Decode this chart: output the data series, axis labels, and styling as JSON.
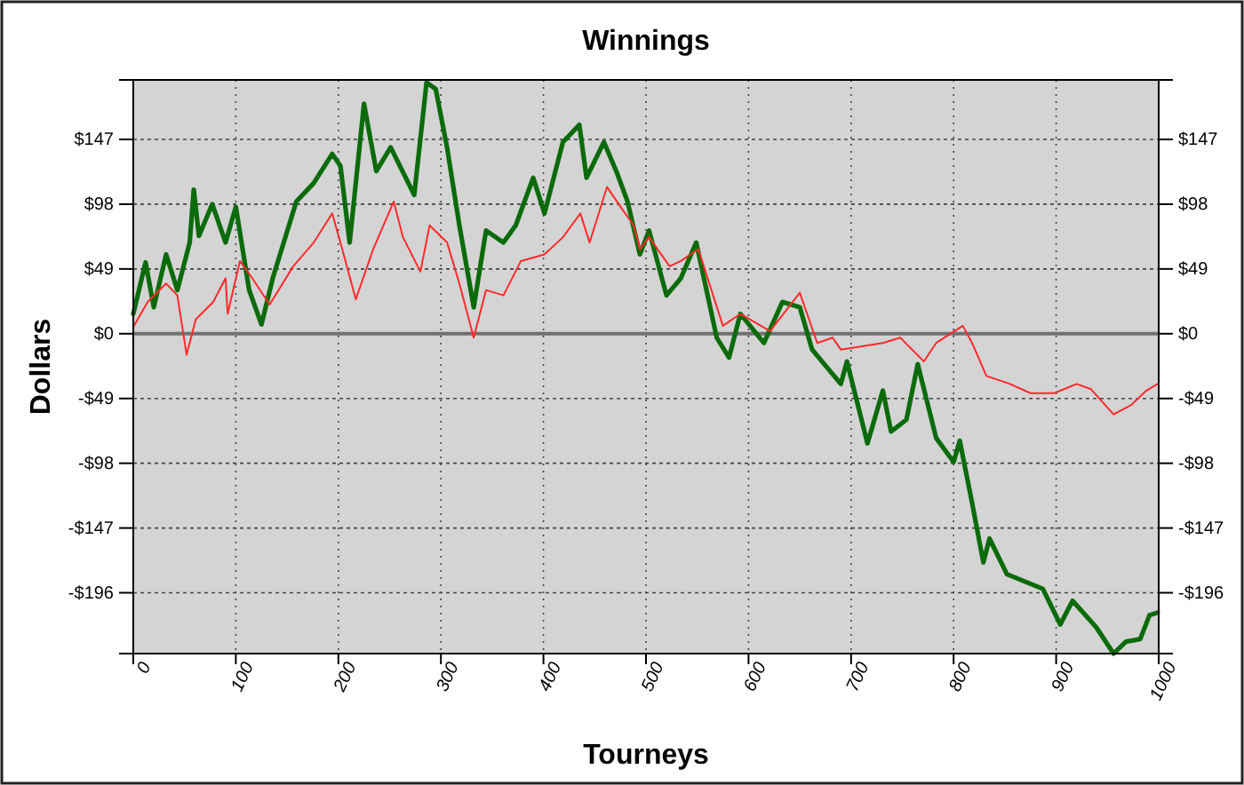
{
  "chart_data": {
    "type": "line",
    "title": "Winnings",
    "xlabel": "Tourneys",
    "ylabel": "Dollars",
    "xlim": [
      0,
      1000
    ],
    "xticks": [
      0,
      100,
      200,
      300,
      400,
      500,
      600,
      700,
      800,
      900,
      1000
    ],
    "ylim": [
      -242,
      192
    ],
    "yticks": [
      {
        "value": -196,
        "label": "-$196"
      },
      {
        "value": -147,
        "label": "-$147"
      },
      {
        "value": -98,
        "label": "-$98"
      },
      {
        "value": -49,
        "label": "-$49"
      },
      {
        "value": 0,
        "label": "$0"
      },
      {
        "value": 49,
        "label": "$49"
      },
      {
        "value": 98,
        "label": "$98"
      },
      {
        "value": 147,
        "label": "$147"
      }
    ],
    "y2lim": [
      -242,
      192
    ],
    "y2ticks": [
      {
        "value": -196,
        "label": "-$196"
      },
      {
        "value": -147,
        "label": "-$147"
      },
      {
        "value": -98,
        "label": "-$98"
      },
      {
        "value": -49,
        "label": "-$49"
      },
      {
        "value": 0,
        "label": "$0"
      },
      {
        "value": 49,
        "label": "$49"
      },
      {
        "value": 98,
        "label": "$98"
      },
      {
        "value": 147,
        "label": "$147"
      }
    ],
    "grid": true,
    "line_style": "solid",
    "marker": "none",
    "ref_lines": [
      {
        "axis": "y",
        "value": 0,
        "color": "#707070",
        "line_style": "solid"
      }
    ],
    "series": [
      {
        "color": "#ff2a2a",
        "x": [
          0,
          14,
          32,
          43,
          52,
          61,
          78,
          90,
          92,
          104,
          116,
          133,
          156,
          176,
          194,
          202,
          217,
          234,
          254,
          263,
          280,
          289,
          306,
          318,
          332,
          344,
          361,
          378,
          401,
          419,
          436,
          445,
          462,
          477,
          488,
          494,
          503,
          523,
          534,
          551,
          575,
          592,
          621,
          650,
          667,
          682,
          690,
          731,
          748,
          771,
          783,
          809,
          818,
          832,
          855,
          875,
          898,
          920,
          934,
          956,
          973,
          988,
          999
        ],
        "values": [
          5,
          24,
          38,
          29,
          -16,
          11,
          24,
          42,
          15,
          55,
          42,
          22,
          51,
          69,
          91,
          69,
          26,
          64,
          100,
          73,
          47,
          82,
          69,
          38,
          -3,
          33,
          29,
          55,
          60,
          73,
          91,
          69,
          111,
          94,
          82,
          64,
          73,
          51,
          55,
          64,
          6,
          15,
          2,
          31,
          -7,
          -3,
          -12,
          -7,
          -3,
          -21,
          -7,
          6,
          -7,
          -32,
          -38,
          -45,
          -45,
          -38,
          -42,
          -61,
          -54,
          -43,
          -38
        ]
      },
      {
        "color": "#0b6b0b",
        "x": [
          0,
          12,
          20,
          32,
          43,
          55,
          59,
          64,
          77,
          90,
          100,
          113,
          125,
          136,
          159,
          176,
          194,
          202,
          211,
          225,
          237,
          251,
          274,
          286,
          295,
          306,
          318,
          332,
          344,
          361,
          373,
          390,
          401,
          419,
          435,
          442,
          459,
          471,
          482,
          494,
          503,
          520,
          534,
          549,
          569,
          581,
          592,
          615,
          633,
          650,
          662,
          690,
          696,
          716,
          731,
          739,
          754,
          765,
          783,
          800,
          806,
          818,
          829,
          835,
          852,
          887,
          904,
          916,
          939,
          956,
          968,
          982,
          991,
          999
        ],
        "values": [
          15,
          54,
          20,
          60,
          33,
          69,
          109,
          74,
          98,
          69,
          96,
          33,
          7,
          42,
          100,
          114,
          136,
          127,
          69,
          174,
          123,
          141,
          105,
          190,
          185,
          141,
          82,
          20,
          78,
          69,
          82,
          118,
          91,
          145,
          158,
          118,
          145,
          123,
          100,
          60,
          78,
          29,
          42,
          69,
          -3,
          -18,
          15,
          -7,
          24,
          20,
          -12,
          -38,
          -21,
          -83,
          -43,
          -74,
          -65,
          -23,
          -79,
          -97,
          -81,
          -128,
          -173,
          -155,
          -182,
          -193,
          -220,
          -202,
          -222,
          -242,
          -233,
          -231,
          -213,
          -211
        ]
      }
    ]
  }
}
